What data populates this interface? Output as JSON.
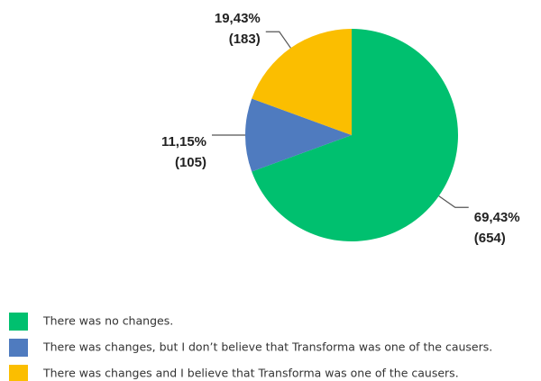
{
  "chart_data": {
    "type": "pie",
    "categories": [
      "There was no changes.",
      "There was changes, but I don’t believe that Transforma was one of the causers.",
      "There was changes and I believe that Transforma was one of the causers."
    ],
    "values": [
      69.43,
      11.15,
      19.43
    ],
    "value_labels": [
      "69,43%",
      "11,15%",
      "19,43%"
    ],
    "counts": [
      654,
      105,
      183
    ],
    "count_labels": [
      "(654)",
      "(105)",
      "(183)"
    ],
    "colors": [
      "#00c06f",
      "#4f7bbf",
      "#fbbe00"
    ]
  }
}
